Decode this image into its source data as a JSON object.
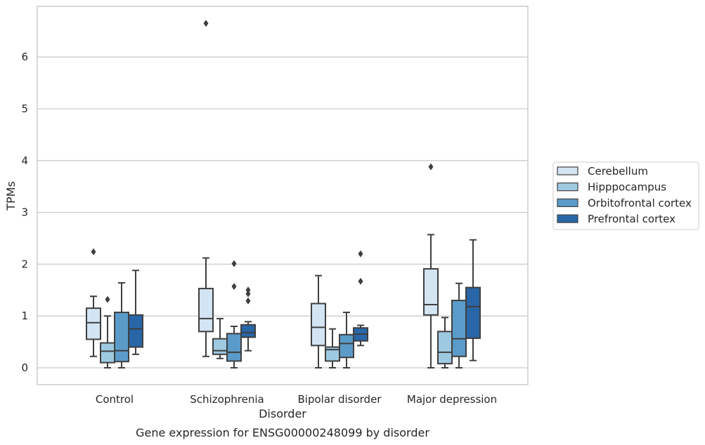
{
  "caption": "Gene expression for ENSG00000248099 by disorder",
  "chart_data": {
    "type": "box",
    "xlabel": "Disorder",
    "ylabel": "TPMs",
    "ylim": [
      -0.32,
      6.95
    ],
    "yticks": [
      0,
      1,
      2,
      3,
      4,
      5,
      6
    ],
    "grid": "horizontal",
    "legend_position": "right",
    "categories": [
      "Control",
      "Schizophrenia",
      "Bipolar disorder",
      "Major depression"
    ],
    "series": [
      {
        "name": "Cerebellum",
        "color": "#d3e4f3",
        "boxes": [
          {
            "whislo": 0.22,
            "q1": 0.55,
            "med": 0.87,
            "q3": 1.15,
            "whishi": 1.38,
            "fliers": [
              2.24
            ]
          },
          {
            "whislo": 0.22,
            "q1": 0.7,
            "med": 0.95,
            "q3": 1.53,
            "whishi": 2.12,
            "fliers": [
              6.65
            ]
          },
          {
            "whislo": 0.0,
            "q1": 0.43,
            "med": 0.78,
            "q3": 1.24,
            "whishi": 1.78,
            "fliers": []
          },
          {
            "whislo": 0.0,
            "q1": 1.02,
            "med": 1.22,
            "q3": 1.91,
            "whishi": 2.57,
            "fliers": [
              3.88
            ]
          }
        ]
      },
      {
        "name": "Hipppocampus",
        "color": "#9ecae1",
        "boxes": [
          {
            "whislo": 0.0,
            "q1": 0.1,
            "med": 0.32,
            "q3": 0.48,
            "whishi": 1.0,
            "fliers": [
              1.32
            ]
          },
          {
            "whislo": 0.18,
            "q1": 0.26,
            "med": 0.33,
            "q3": 0.56,
            "whishi": 0.95,
            "fliers": []
          },
          {
            "whislo": 0.0,
            "q1": 0.13,
            "med": 0.35,
            "q3": 0.4,
            "whishi": 0.75,
            "fliers": []
          },
          {
            "whislo": 0.0,
            "q1": 0.08,
            "med": 0.3,
            "q3": 0.7,
            "whishi": 0.97,
            "fliers": []
          }
        ]
      },
      {
        "name": "Orbitofrontal cortex",
        "color": "#5b9bc9",
        "boxes": [
          {
            "whislo": 0.0,
            "q1": 0.12,
            "med": 0.33,
            "q3": 1.07,
            "whishi": 1.64,
            "fliers": []
          },
          {
            "whislo": 0.0,
            "q1": 0.13,
            "med": 0.3,
            "q3": 0.66,
            "whishi": 0.8,
            "fliers": [
              1.57,
              2.01
            ]
          },
          {
            "whislo": 0.0,
            "q1": 0.2,
            "med": 0.47,
            "q3": 0.64,
            "whishi": 1.07,
            "fliers": []
          },
          {
            "whislo": 0.0,
            "q1": 0.22,
            "med": 0.56,
            "q3": 1.3,
            "whishi": 1.63,
            "fliers": []
          }
        ]
      },
      {
        "name": "Prefrontal cortex",
        "color": "#2866a8",
        "boxes": [
          {
            "whislo": 0.26,
            "q1": 0.4,
            "med": 0.75,
            "q3": 1.02,
            "whishi": 1.88,
            "fliers": []
          },
          {
            "whislo": 0.33,
            "q1": 0.59,
            "med": 0.68,
            "q3": 0.83,
            "whishi": 0.89,
            "fliers": [
              1.29,
              1.43,
              1.5
            ]
          },
          {
            "whislo": 0.43,
            "q1": 0.52,
            "med": 0.65,
            "q3": 0.77,
            "whishi": 0.82,
            "fliers": [
              1.67,
              2.2
            ]
          },
          {
            "whislo": 0.14,
            "q1": 0.57,
            "med": 1.18,
            "q3": 1.55,
            "whishi": 2.47,
            "fliers": []
          }
        ]
      }
    ]
  }
}
